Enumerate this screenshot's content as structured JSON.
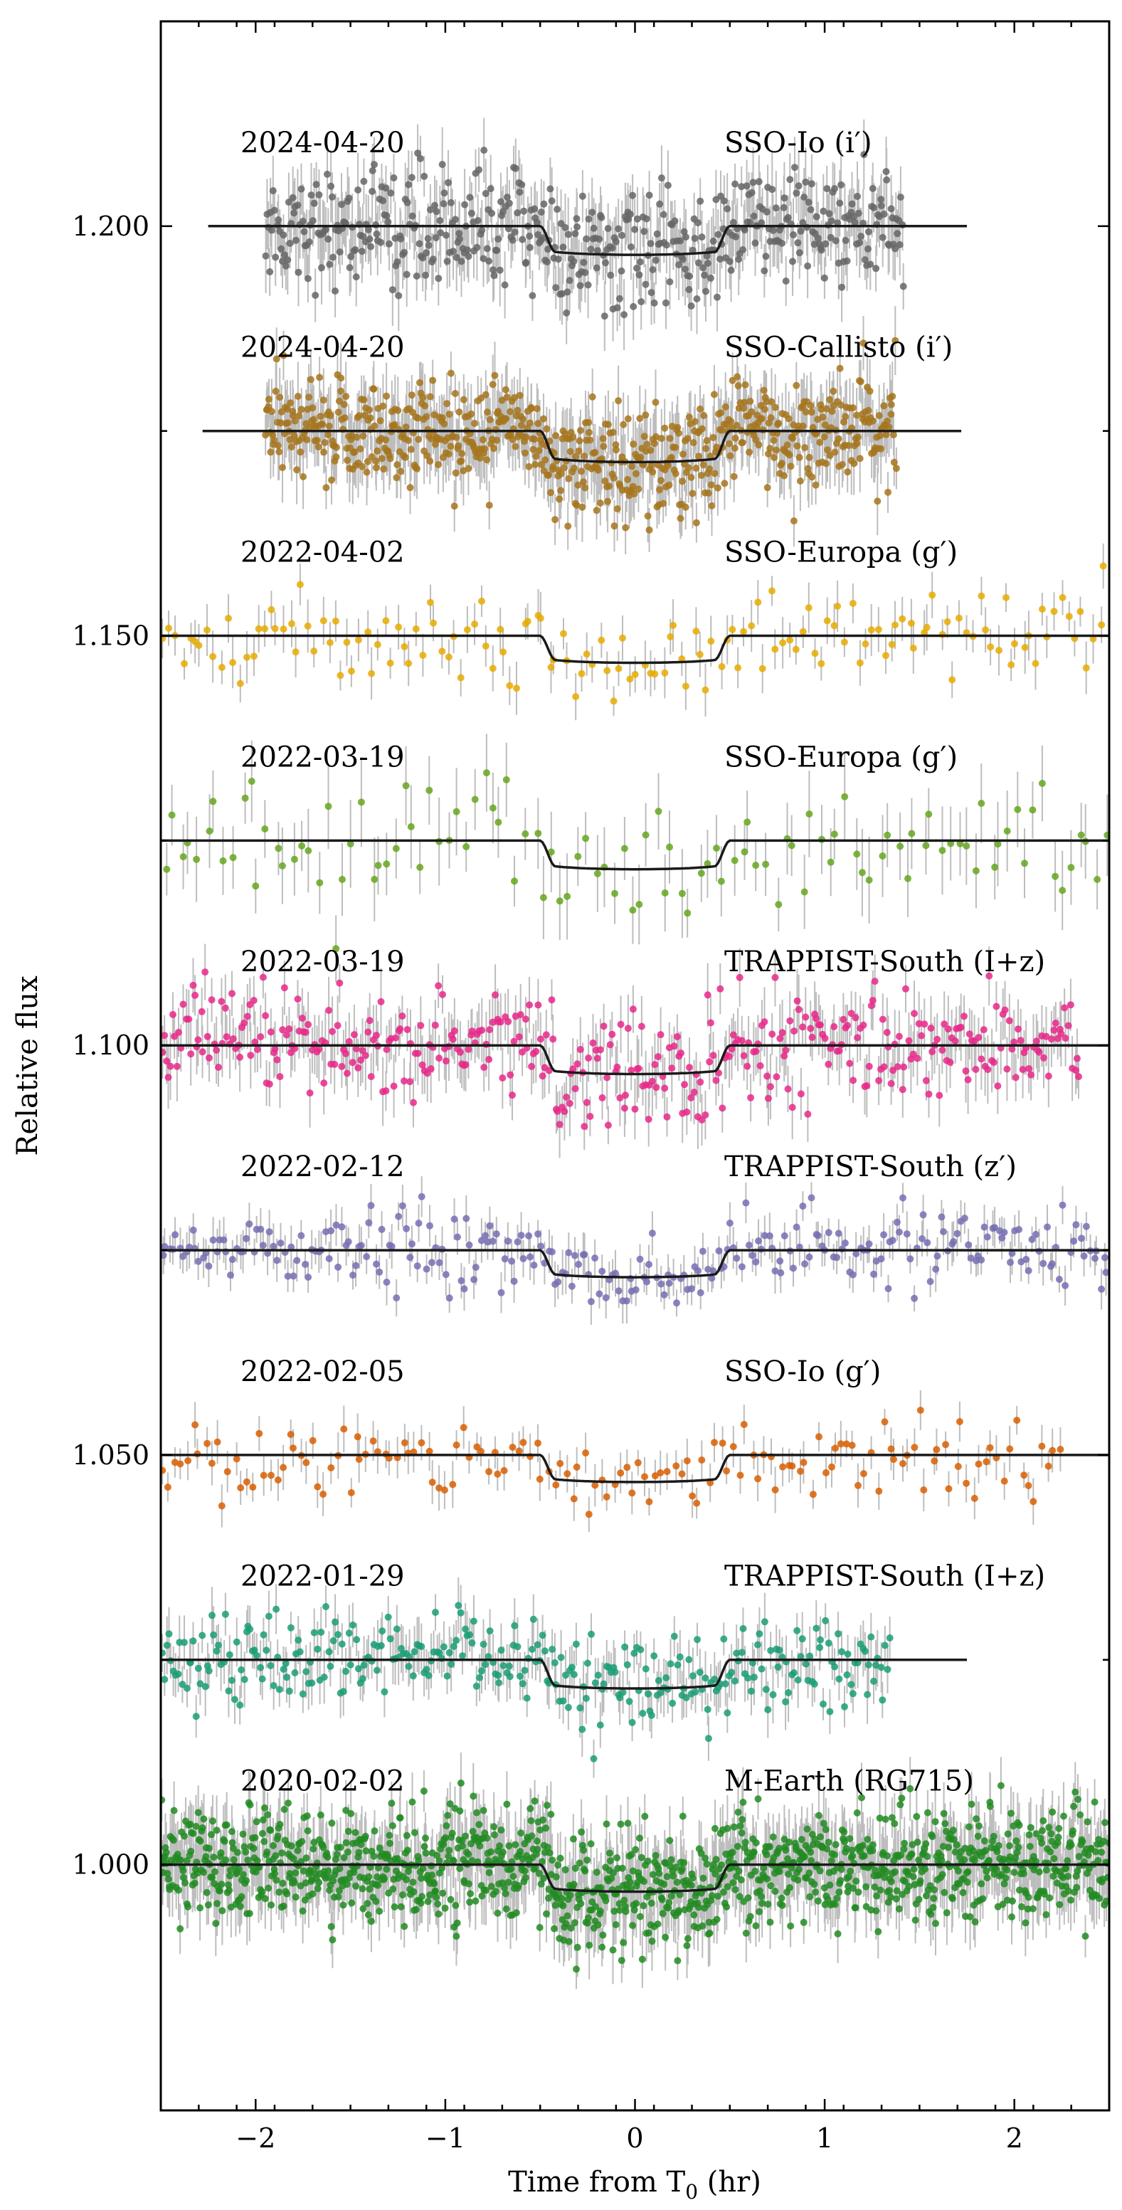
{
  "chart_data": {
    "type": "scatter",
    "xlabel": "Time from T",
    "xlabel_sub": "0",
    "xlabel_unit": " (hr)",
    "ylabel": "Relative flux",
    "xlim": [
      -2.5,
      2.5
    ],
    "ylim": [
      0.97,
      1.225
    ],
    "x_ticks": [
      {
        "value": -2,
        "label": "−2"
      },
      {
        "value": -1,
        "label": "−1"
      },
      {
        "value": 0,
        "label": "0"
      },
      {
        "value": 1,
        "label": "1"
      },
      {
        "value": 2,
        "label": "2"
      }
    ],
    "y_ticks": [
      {
        "value": 1.0,
        "label": "1.000"
      },
      {
        "value": 1.05,
        "label": "1.050"
      },
      {
        "value": 1.1,
        "label": "1.100"
      },
      {
        "value": 1.15,
        "label": "1.150"
      },
      {
        "value": 1.2,
        "label": "1.200"
      }
    ],
    "y_minor_ticks": [
      1.025,
      1.075,
      1.125,
      1.175
    ],
    "transit": {
      "ingress": -0.5,
      "egress": 0.5,
      "edge_duration": 0.08
    },
    "series": [
      {
        "date": "2024-04-20",
        "instrument": "SSO-Io (i′)",
        "offset": 1.2,
        "depth": 0.0035,
        "x_range": [
          -1.95,
          1.42
        ],
        "model_range": [
          -2.25,
          1.75
        ],
        "n_points": 500,
        "scatter": 0.0035,
        "color": "#666666"
      },
      {
        "date": "2024-04-20",
        "instrument": "SSO-Callisto (i′)",
        "offset": 1.175,
        "depth": 0.0038,
        "x_range": [
          -1.95,
          1.38
        ],
        "model_range": [
          -2.28,
          1.72
        ],
        "n_points": 700,
        "scatter": 0.0033,
        "color": "#a6761d"
      },
      {
        "date": "2022-04-02",
        "instrument": "SSO-Europa (g′)",
        "offset": 1.15,
        "depth": 0.0033,
        "x_range": [
          -2.5,
          2.5
        ],
        "model_range": [
          -2.5,
          2.5
        ],
        "n_points": 150,
        "scatter": 0.0025,
        "color": "#e6ab02"
      },
      {
        "date": "2022-03-19",
        "instrument": "SSO-Europa (g′)",
        "offset": 1.125,
        "depth": 0.0035,
        "x_range": [
          -2.5,
          2.5
        ],
        "model_range": [
          -2.5,
          2.5
        ],
        "n_points": 110,
        "scatter": 0.0042,
        "color": "#66a61e"
      },
      {
        "date": "2022-03-19",
        "instrument": "TRAPPIST-South (I+z)",
        "offset": 1.1,
        "depth": 0.0035,
        "x_range": [
          -2.5,
          2.35
        ],
        "model_range": [
          -2.5,
          2.5
        ],
        "n_points": 420,
        "scatter": 0.0033,
        "color": "#e7298a"
      },
      {
        "date": "2022-02-12",
        "instrument": "TRAPPIST-South (z′)",
        "offset": 1.075,
        "depth": 0.0033,
        "x_range": [
          -2.5,
          2.5
        ],
        "model_range": [
          -2.5,
          2.5
        ],
        "n_points": 280,
        "scatter": 0.0022,
        "color": "#7570b3"
      },
      {
        "date": "2022-02-05",
        "instrument": "SSO-Io (g′)",
        "offset": 1.05,
        "depth": 0.0033,
        "x_range": [
          -2.5,
          2.25
        ],
        "model_range": [
          -2.5,
          2.5
        ],
        "n_points": 150,
        "scatter": 0.0022,
        "color": "#d95f02"
      },
      {
        "date": "2022-01-29",
        "instrument": "TRAPPIST-South (I+z)",
        "offset": 1.025,
        "depth": 0.0035,
        "x_range": [
          -2.5,
          1.35
        ],
        "model_range": [
          -2.5,
          1.75
        ],
        "n_points": 320,
        "scatter": 0.0028,
        "color": "#1b9e77"
      },
      {
        "date": "2020-02-02",
        "instrument": "M-Earth (RG715)",
        "offset": 1.0,
        "depth": 0.0033,
        "x_range": [
          -2.5,
          2.5
        ],
        "model_range": [
          -2.5,
          2.5
        ],
        "n_points": 1300,
        "scatter": 0.0033,
        "color": "#228b22"
      }
    ]
  }
}
